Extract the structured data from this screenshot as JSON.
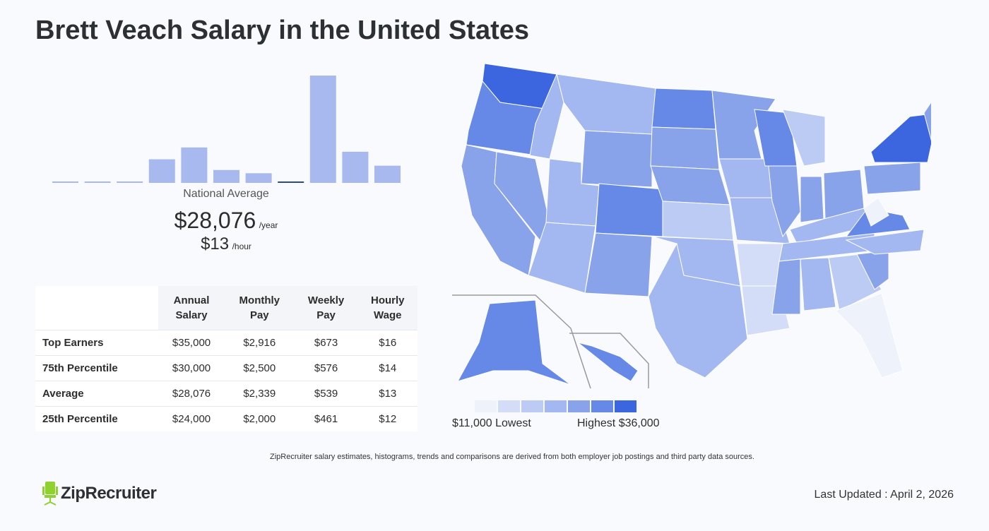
{
  "title": "Brett Veach Salary in the United States",
  "chart_data": {
    "type": "bar",
    "title": "",
    "relative_frequencies": [
      1,
      1,
      1,
      22,
      33,
      12,
      9,
      1,
      100,
      29,
      16
    ],
    "highlight_index": 7,
    "bar_color": "#a8b9ef",
    "highlight_color": "#2c4b8f"
  },
  "national_average": {
    "label": "National Average",
    "annual": "$28,076",
    "annual_unit": "/year",
    "hourly": "$13",
    "hourly_unit": "/hour"
  },
  "table": {
    "headers": [
      [
        "Annual",
        "Salary"
      ],
      [
        "Monthly",
        "Pay"
      ],
      [
        "Weekly",
        "Pay"
      ],
      [
        "Hourly",
        "Wage"
      ]
    ],
    "rows": [
      {
        "label": "Top Earners",
        "values": [
          "$35,000",
          "$2,916",
          "$673",
          "$16"
        ]
      },
      {
        "label": "75th Percentile",
        "values": [
          "$30,000",
          "$2,500",
          "$576",
          "$14"
        ]
      },
      {
        "label": "Average",
        "values": [
          "$28,076",
          "$2,339",
          "$539",
          "$13"
        ]
      },
      {
        "label": "25th Percentile",
        "values": [
          "$24,000",
          "$2,000",
          "$461",
          "$12"
        ]
      }
    ]
  },
  "map": {
    "legend_colors": [
      "#eef2fb",
      "#d3ddf7",
      "#bccbf4",
      "#a3b7f0",
      "#89a3eb",
      "#6688e6",
      "#3b66e0"
    ],
    "lowest": "$11,000 Lowest",
    "highest": "Highest $36,000"
  },
  "footnote": "ZipRecruiter salary estimates, histograms, trends and comparisons are derived from both employer job postings and third party data sources.",
  "logo": "ZipRecruiter",
  "last_updated": "Last Updated : April 2, 2026"
}
